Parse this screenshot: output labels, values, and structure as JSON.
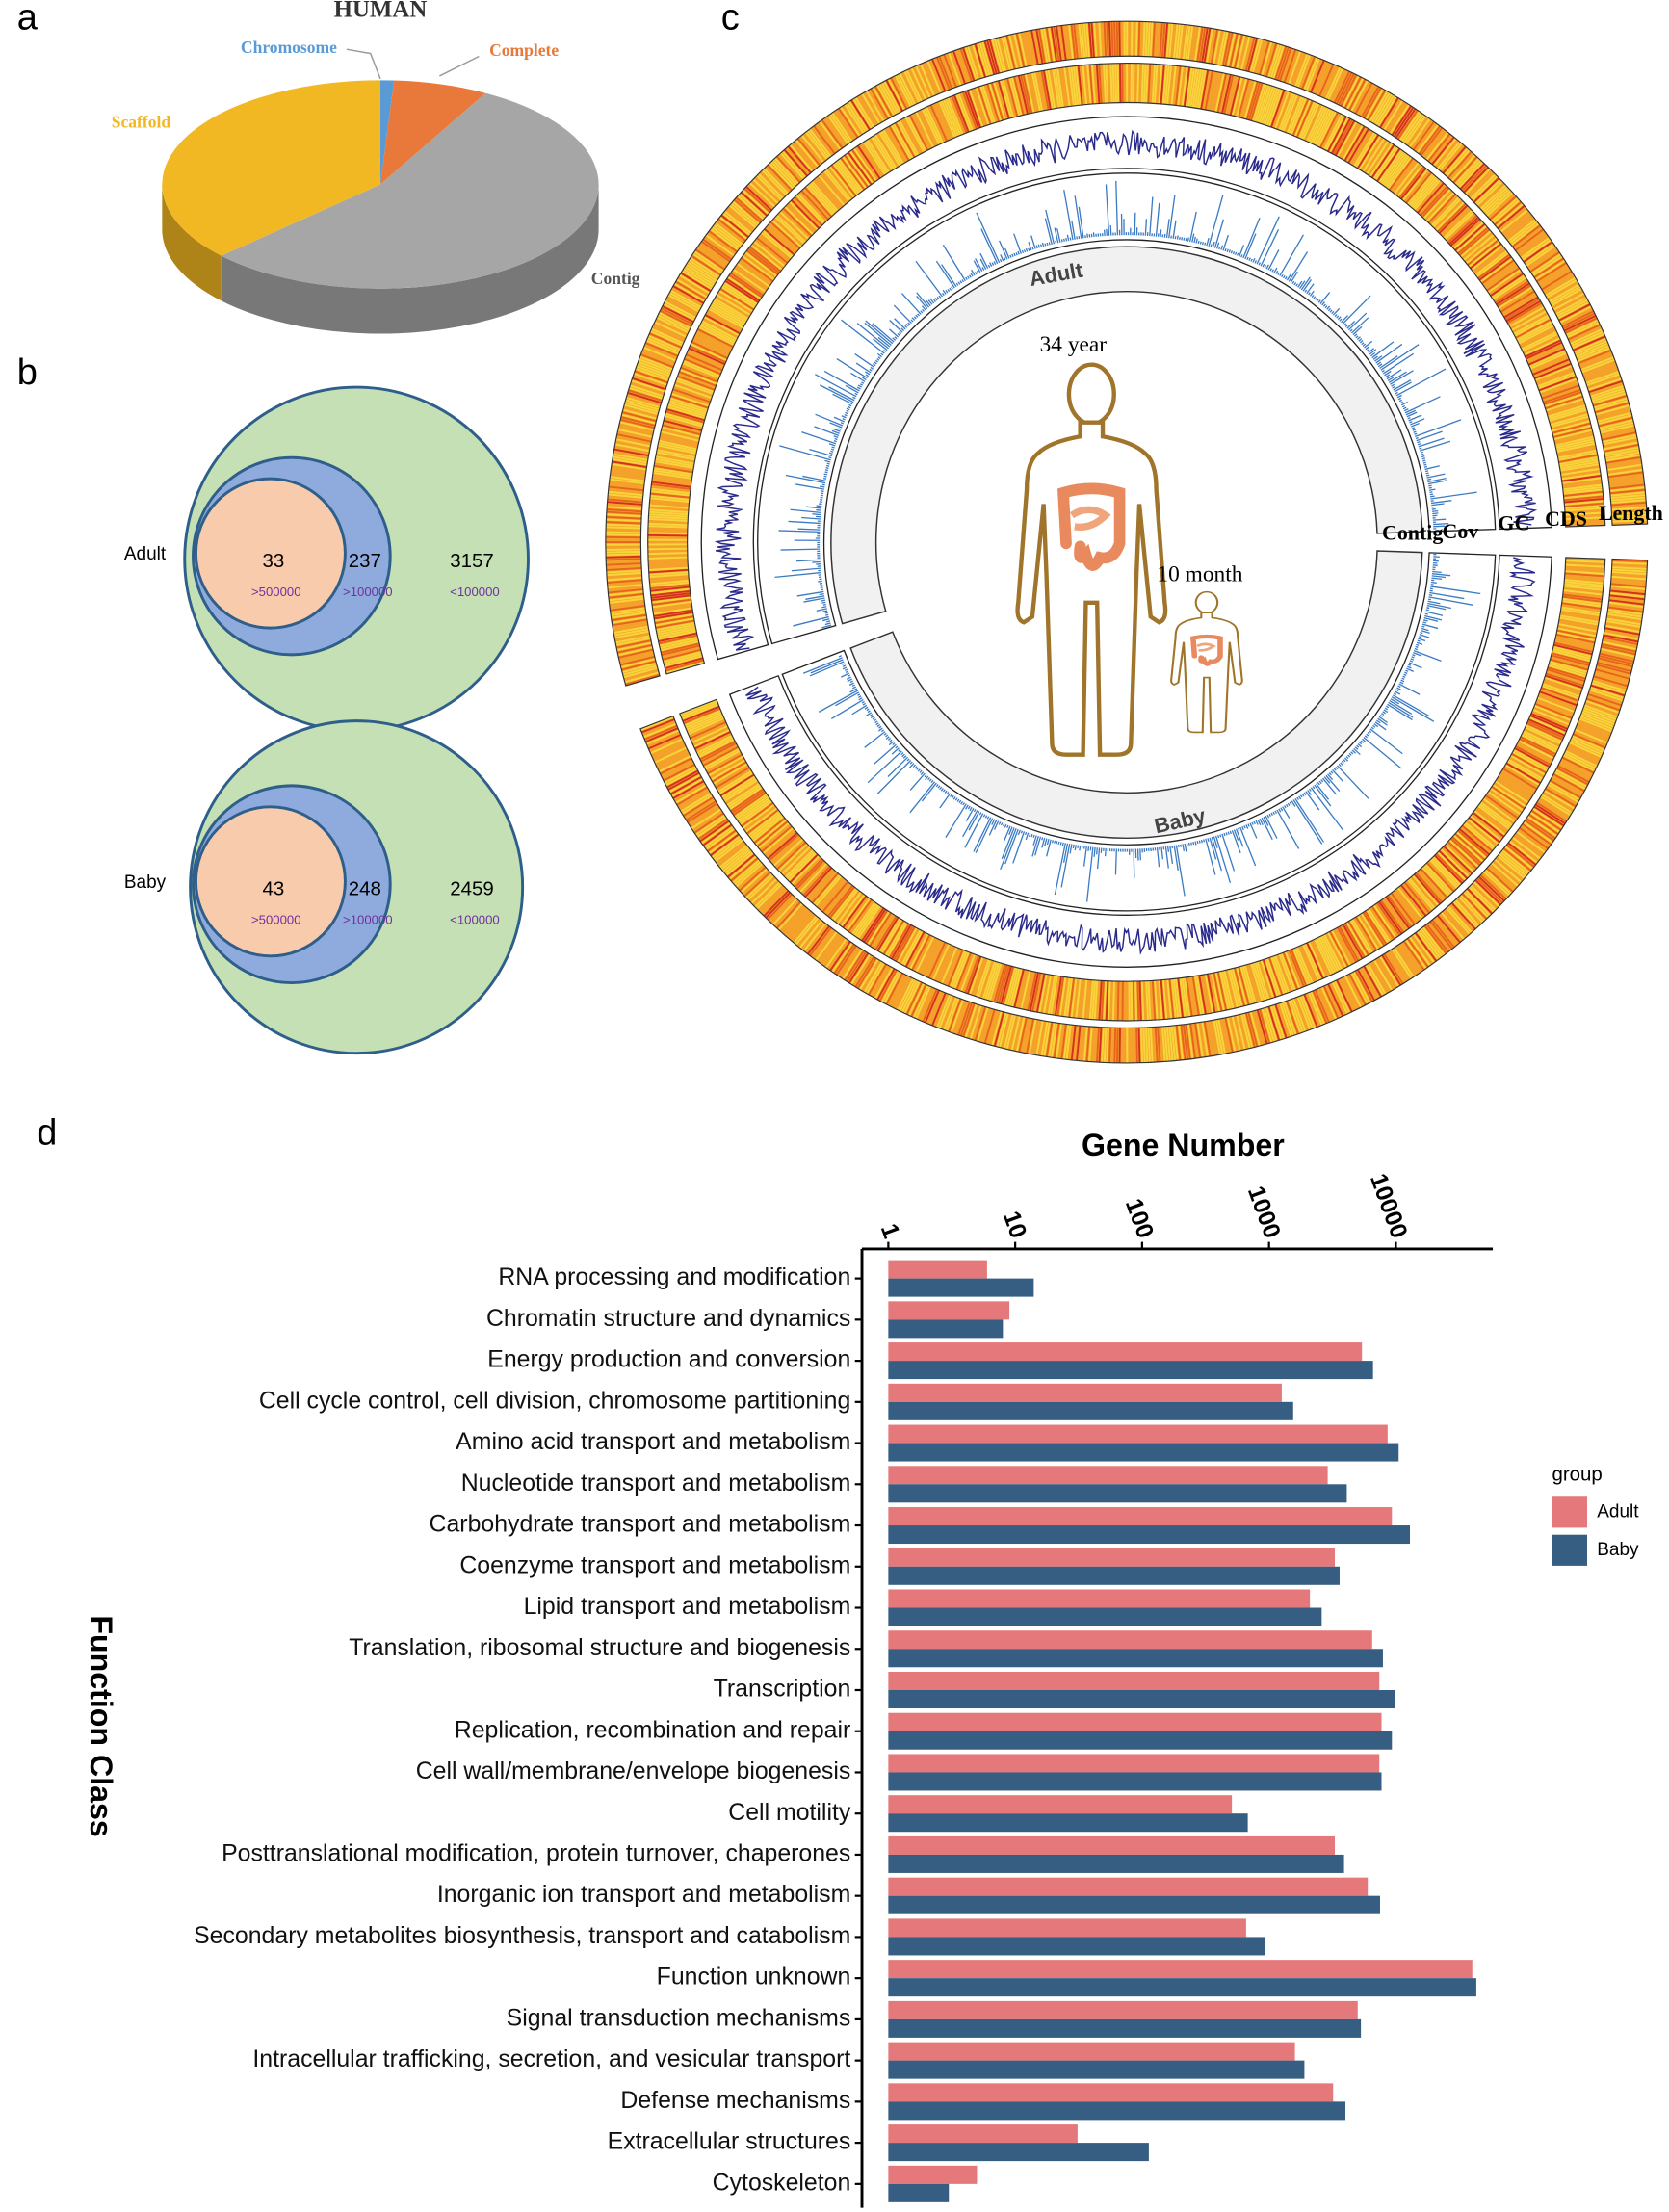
{
  "panel_labels": [
    "a",
    "b",
    "c",
    "d"
  ],
  "chart_data": [
    {
      "type": "pie",
      "title": "HUMAN",
      "categories": [
        "Chromosome",
        "Complete",
        "Contig",
        "Scaffold"
      ],
      "values": [
        1,
        7,
        55,
        37
      ],
      "colors": [
        "#5b9bd5",
        "#e8793a",
        "#a6a6a6",
        "#f2b823"
      ]
    },
    {
      "type": "venn",
      "groups": [
        {
          "name": "Adult",
          "values": [
            33,
            237,
            3157
          ],
          "region_labels": [
            ">500000",
            ">100000",
            "<100000"
          ]
        },
        {
          "name": "Baby",
          "values": [
            43,
            248,
            2459
          ],
          "region_labels": [
            ">500000",
            ">100000",
            "<100000"
          ]
        }
      ],
      "colors": [
        "#f8cbad",
        "#8faadc",
        "#c5e0b4"
      ]
    },
    {
      "type": "circos",
      "segments": [
        "Adult",
        "Baby"
      ],
      "tracks": [
        "Contig",
        "Cov",
        "GC",
        "CDS",
        "Length"
      ],
      "annotations": [
        "34 year",
        "10 month"
      ]
    },
    {
      "type": "bar",
      "orientation": "horizontal",
      "xscale": "log",
      "x_label": "Gene Number",
      "y_label": "Function Class",
      "categories": [
        "RNA processing and modification",
        "Chromatin structure and dynamics",
        "Energy production and conversion",
        "Cell cycle control, cell division, chromosome partitioning",
        "Amino acid transport and metabolism",
        "Nucleotide transport and metabolism",
        "Carbohydrate transport and metabolism",
        "Coenzyme transport and metabolism",
        "Lipid transport and metabolism",
        "Translation, ribosomal structure and biogenesis",
        "Transcription",
        "Replication, recombination and repair",
        "Cell wall/membrane/envelope biogenesis",
        "Cell motility",
        "Posttranslational modification, protein turnover, chaperones",
        "Inorganic ion transport and metabolism",
        "Secondary metabolites biosynthesis, transport and catabolism",
        "Function unknown",
        "Signal transduction mechanisms",
        "Intracellular trafficking, secretion, and vesicular transport",
        "Defense mechanisms",
        "Extracellular structures",
        "Cytoskeleton"
      ],
      "series": [
        {
          "name": "Adult",
          "color": "#e5787a",
          "values": [
            6,
            9,
            5400,
            1260,
            8600,
            2900,
            9300,
            3300,
            2100,
            6500,
            7400,
            7700,
            7400,
            510,
            3300,
            6000,
            660,
            40000,
            5000,
            1600,
            3200,
            31,
            5
          ]
        },
        {
          "name": "Baby",
          "color": "#365e82",
          "values": [
            14,
            8,
            6600,
            1550,
            10500,
            4100,
            12900,
            3600,
            2600,
            7900,
            9800,
            9300,
            7700,
            680,
            3900,
            7500,
            930,
            43000,
            5300,
            1900,
            4000,
            113,
            3
          ]
        }
      ],
      "xlim": [
        0.62,
        58000
      ],
      "xticks": [
        1,
        10,
        100,
        1000,
        10000
      ],
      "legend_title": "group",
      "legend": "right"
    }
  ]
}
